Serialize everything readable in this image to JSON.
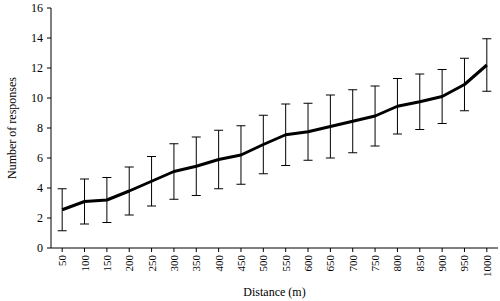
{
  "chart_data": {
    "type": "line",
    "x_label": "Distance (m)",
    "y_label": "Number of responses",
    "categories": [
      "50",
      "100",
      "150",
      "200",
      "250",
      "300",
      "350",
      "400",
      "450",
      "500",
      "550",
      "600",
      "650",
      "700",
      "750",
      "800",
      "850",
      "900",
      "950",
      "1000"
    ],
    "values": [
      2.55,
      3.1,
      3.2,
      3.8,
      4.45,
      5.1,
      5.45,
      5.9,
      6.2,
      6.9,
      7.55,
      7.75,
      8.1,
      8.45,
      8.8,
      9.45,
      9.75,
      10.1,
      10.9,
      12.2
    ],
    "errors": [
      1.4,
      1.5,
      1.5,
      1.6,
      1.65,
      1.85,
      1.95,
      1.95,
      1.95,
      1.95,
      2.05,
      1.9,
      2.1,
      2.1,
      2.0,
      1.85,
      1.85,
      1.8,
      1.75,
      1.75
    ],
    "color": "#000000",
    "ylim": [
      0,
      16
    ],
    "yticks": [
      0,
      2,
      4,
      6,
      8,
      10,
      12,
      14,
      16
    ],
    "grid": false
  }
}
